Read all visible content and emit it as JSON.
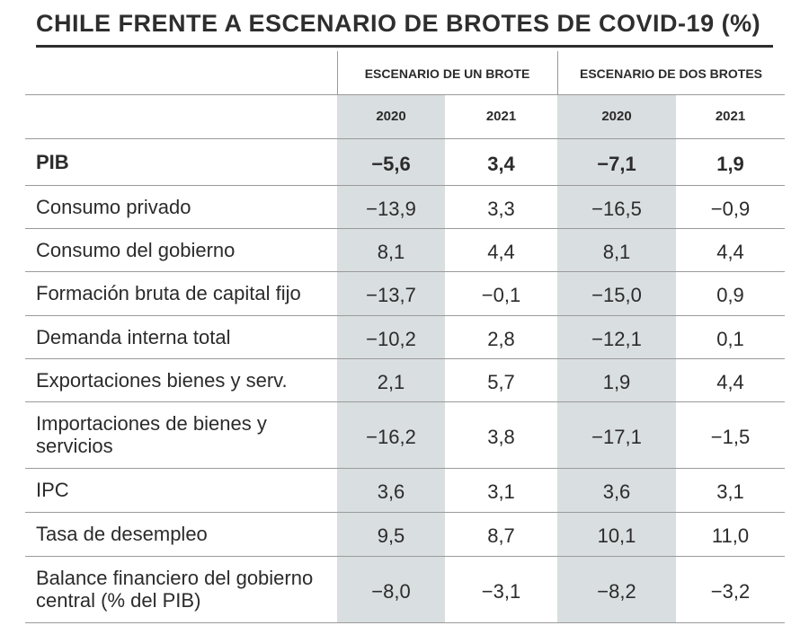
{
  "title": "CHILE FRENTE A ESCENARIO DE BROTES DE COVID-19 (%)",
  "chart_data": {
    "type": "table",
    "title": "CHILE FRENTE A ESCENARIO DE BROTES DE COVID-19 (%)",
    "column_groups": [
      "ESCENARIO DE UN BROTE",
      "ESCENARIO DE DOS BROTES"
    ],
    "columns": [
      "2020",
      "2021",
      "2020",
      "2021"
    ],
    "rows": [
      {
        "label": "PIB",
        "values": [
          "-5,6",
          "3,4",
          "-7,1",
          "1,9"
        ]
      },
      {
        "label": "Consumo privado",
        "values": [
          "-13,9",
          "3,3",
          "-16,5",
          "-0,9"
        ]
      },
      {
        "label": "Consumo del gobierno",
        "values": [
          "8,1",
          "4,4",
          "8,1",
          "4,4"
        ]
      },
      {
        "label": "Formación bruta de capital fijo",
        "values": [
          "-13,7",
          "-0,1",
          "-15,0",
          "0,9"
        ]
      },
      {
        "label": "Demanda interna total",
        "values": [
          "-10,2",
          "2,8",
          "-12,1",
          "0,1"
        ]
      },
      {
        "label": "Exportaciones bienes y serv.",
        "values": [
          "2,1",
          "5,7",
          "1,9",
          "4,4"
        ]
      },
      {
        "label": "Importaciones de bienes y servicios",
        "values": [
          "-16,2",
          "3,8",
          "-17,1",
          "-1,5"
        ]
      },
      {
        "label": "IPC",
        "values": [
          "3,6",
          "3,1",
          "3,6",
          "3,1"
        ]
      },
      {
        "label": "Tasa de desempleo",
        "values": [
          "9,5",
          "8,7",
          "10,1",
          "11,0"
        ]
      },
      {
        "label": "Balance financiero del gobierno central (% del PIB)",
        "values": [
          "-8,0",
          "-3,1",
          "-8,2",
          "-3,2"
        ]
      }
    ]
  },
  "colors": {
    "shade": "#d9dee0",
    "text": "#2b2b2b",
    "rule": "#9a9a9a"
  }
}
